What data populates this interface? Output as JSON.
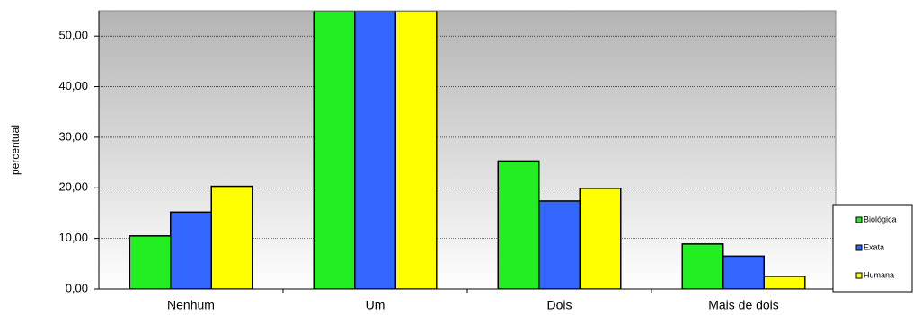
{
  "chart_data": {
    "type": "bar",
    "ylabel": "percentual",
    "categories": [
      "Nenhum",
      "Um",
      "Dois",
      "Mais de dois"
    ],
    "series": [
      {
        "name": "Biológica",
        "color": "#22ee22",
        "values": [
          10.5,
          55,
          25.3,
          8.9
        ]
      },
      {
        "name": "Exata",
        "color": "#3366ff",
        "values": [
          15.2,
          55,
          17.4,
          6.5
        ]
      },
      {
        "name": "Humana",
        "color": "#ffff00",
        "values": [
          20.3,
          55,
          19.9,
          2.5
        ]
      }
    ],
    "ylim": [
      0,
      55
    ],
    "yticks": [
      {
        "value": 0,
        "label": "0,00"
      },
      {
        "value": 10,
        "label": "10,00"
      },
      {
        "value": 20,
        "label": "20,00"
      },
      {
        "value": 30,
        "label": "30,00"
      },
      {
        "value": 40,
        "label": "40,00"
      },
      {
        "value": 50,
        "label": "50,00"
      }
    ],
    "grid": true
  }
}
